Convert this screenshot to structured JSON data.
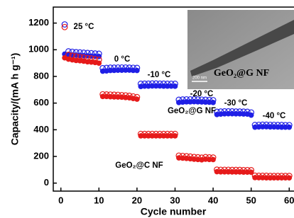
{
  "chart_data": {
    "type": "scatter",
    "x_label": "Cycle number",
    "y_label": "Capacity/(mA h g⁻¹)",
    "xlim": [
      -2,
      62
    ],
    "ylim": [
      -60,
      1320
    ],
    "xticks": [
      0,
      10,
      20,
      30,
      40,
      50,
      60
    ],
    "yticks": [
      0,
      200,
      400,
      600,
      800,
      1000,
      1200
    ],
    "x": [
      1,
      2,
      3,
      4,
      5,
      6,
      7,
      8,
      9,
      10,
      11,
      12,
      13,
      14,
      15,
      16,
      17,
      18,
      19,
      20,
      21,
      22,
      23,
      24,
      25,
      26,
      27,
      28,
      29,
      30,
      31,
      32,
      33,
      34,
      35,
      36,
      37,
      38,
      39,
      40,
      41,
      42,
      43,
      44,
      45,
      46,
      47,
      48,
      49,
      50,
      51,
      52,
      53,
      54,
      55,
      56,
      57,
      58,
      59,
      60
    ],
    "series": [
      {
        "name": "GeO₂@G NF",
        "color": "#1f1fe6",
        "values": [
          978,
          975,
          972,
          970,
          968,
          966,
          965,
          963,
          962,
          960,
          850,
          852,
          855,
          856,
          857,
          857,
          858,
          858,
          856,
          855,
          735,
          738,
          738,
          739,
          739,
          739,
          738,
          738,
          738,
          737,
          615,
          618,
          620,
          620,
          621,
          620,
          619,
          618,
          617,
          615,
          525,
          528,
          530,
          531,
          531,
          530,
          530,
          529,
          528,
          520,
          430,
          432,
          433,
          433,
          432,
          432,
          431,
          430,
          430,
          430
        ],
        "hollow_values": [
          1190,
          988,
          985,
          982,
          980,
          978,
          976,
          974,
          972,
          970,
          862,
          864,
          866,
          866,
          867,
          867,
          867,
          866,
          865,
          864,
          745,
          746,
          746,
          747,
          747,
          746,
          746,
          745,
          745,
          745,
          625,
          627,
          628,
          628,
          628,
          627,
          626,
          625,
          624,
          622,
          535,
          537,
          538,
          538,
          538,
          537,
          537,
          536,
          535,
          530,
          436,
          437,
          438,
          438,
          437,
          437,
          436,
          436,
          435,
          435
        ]
      },
      {
        "name": "GeO₂@C NF",
        "color": "#e61a1a",
        "values": [
          950,
          940,
          935,
          930,
          928,
          925,
          920,
          918,
          915,
          910,
          660,
          660,
          658,
          657,
          656,
          655,
          652,
          650,
          645,
          640,
          365,
          365,
          365,
          365,
          365,
          365,
          365,
          365,
          365,
          365,
          200,
          198,
          196,
          193,
          190,
          188,
          185,
          190,
          188,
          187,
          96,
          95,
          95,
          95,
          94,
          94,
          94,
          93,
          93,
          92,
          52,
          51,
          51,
          50,
          50,
          50,
          50,
          50,
          50,
          50
        ],
        "hollow_values": [
          1170,
          962,
          955,
          950,
          946,
          943,
          938,
          935,
          930,
          925,
          666,
          665,
          664,
          663,
          662,
          660,
          658,
          655,
          650,
          645,
          369,
          369,
          369,
          369,
          369,
          369,
          369,
          369,
          369,
          369,
          206,
          204,
          202,
          199,
          196,
          194,
          191,
          195,
          193,
          192,
          101,
          100,
          100,
          100,
          99,
          99,
          99,
          98,
          98,
          97,
          56,
          55,
          55,
          55,
          54,
          54,
          54,
          54,
          54,
          54
        ]
      }
    ],
    "annotations": [
      "25 °C",
      "0 °C",
      "-10 °C",
      "-20 °C",
      "-30 °C",
      "-40 °C",
      "GeO₂@G NF",
      "GeO₂@C NF"
    ],
    "inset": {
      "caption": "GeO₂@G NF",
      "scale_bar": "200 nm"
    }
  }
}
